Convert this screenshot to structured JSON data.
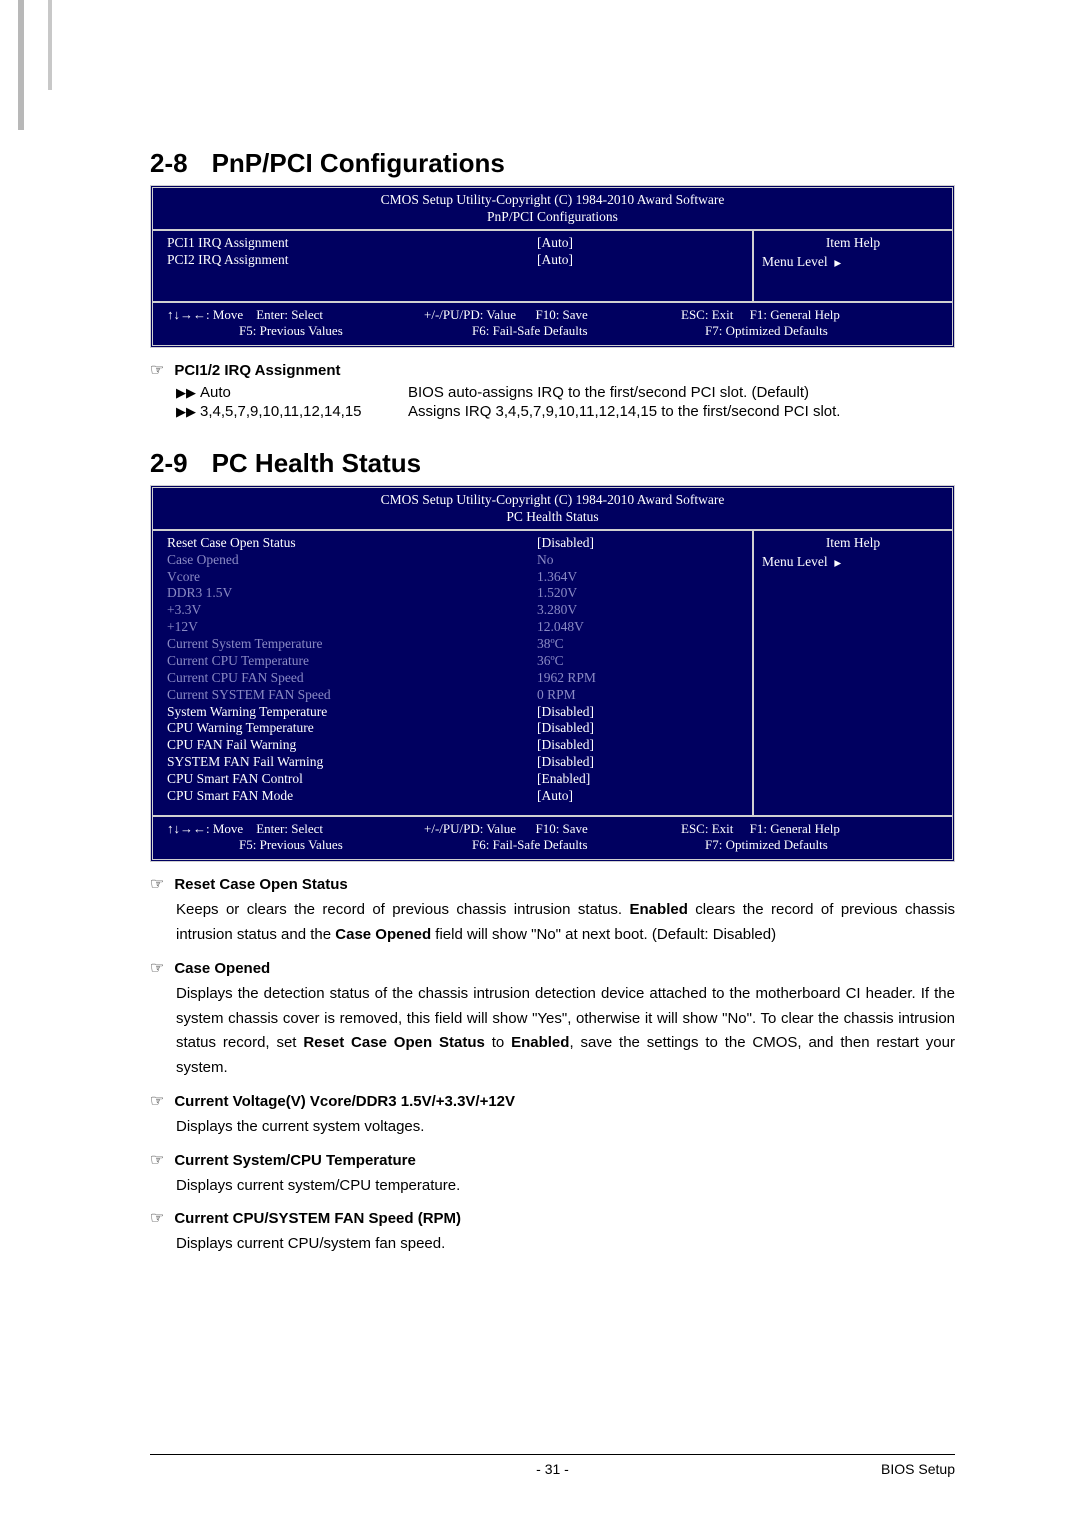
{
  "section1": {
    "number": "2-8",
    "title": "PnP/PCI Configurations",
    "bios": {
      "copyright": "CMOS Setup Utility-Copyright (C) 1984-2010 Award Software",
      "subtitle": "PnP/PCI Configurations",
      "rows": [
        {
          "label": "PCI1 IRQ Assignment",
          "value": "[Auto]",
          "dim": false
        },
        {
          "label": "PCI2 IRQ Assignment",
          "value": "[Auto]",
          "dim": false
        }
      ],
      "item_help": "Item Help",
      "menu_level": "Menu Level",
      "footer": {
        "move": "↑↓→←: Move",
        "enter": "Enter: Select",
        "pupd": "+/-/PU/PD: Value",
        "f10": "F10: Save",
        "esc": "ESC: Exit",
        "f1": "F1: General Help",
        "f5": "F5: Previous Values",
        "f6": "F6: Fail-Safe Defaults",
        "f7": "F7: Optimized Defaults"
      }
    },
    "option": {
      "heading": "PCI1/2 IRQ Assignment",
      "items": [
        {
          "k": "Auto",
          "v": "BIOS auto-assigns IRQ to the first/second PCI slot. (Default)"
        },
        {
          "k": "3,4,5,7,9,10,11,12,14,15",
          "v": "Assigns IRQ 3,4,5,7,9,10,11,12,14,15 to the first/second PCI slot."
        }
      ]
    }
  },
  "section2": {
    "number": "2-9",
    "title": "PC Health Status",
    "bios": {
      "copyright": "CMOS Setup Utility-Copyright (C) 1984-2010 Award Software",
      "subtitle": "PC Health Status",
      "rows": [
        {
          "label": "Reset Case Open Status",
          "value": "[Disabled]",
          "dim": false
        },
        {
          "label": "Case Opened",
          "value": "No",
          "dim": true
        },
        {
          "label": "Vcore",
          "value": "1.364V",
          "dim": true
        },
        {
          "label": "DDR3 1.5V",
          "value": "1.520V",
          "dim": true
        },
        {
          "label": "+3.3V",
          "value": "3.280V",
          "dim": true
        },
        {
          "label": "+12V",
          "value": "12.048V",
          "dim": true
        },
        {
          "label": "Current System Temperature",
          "value": "38ºC",
          "dim": true
        },
        {
          "label": "Current CPU Temperature",
          "value": "36ºC",
          "dim": true
        },
        {
          "label": "Current CPU FAN Speed",
          "value": "1962 RPM",
          "dim": true
        },
        {
          "label": "Current SYSTEM FAN Speed",
          "value": "0 RPM",
          "dim": true
        },
        {
          "label": "System Warning Temperature",
          "value": "[Disabled]",
          "dim": false
        },
        {
          "label": "CPU Warning Temperature",
          "value": "[Disabled]",
          "dim": false
        },
        {
          "label": "CPU FAN Fail Warning",
          "value": "[Disabled]",
          "dim": false
        },
        {
          "label": "SYSTEM FAN Fail Warning",
          "value": "[Disabled]",
          "dim": false
        },
        {
          "label": "CPU Smart FAN Control",
          "value": "[Enabled]",
          "dim": false
        },
        {
          "label": "CPU Smart FAN Mode",
          "value": "[Auto]",
          "dim": false
        }
      ],
      "item_help": "Item Help",
      "menu_level": "Menu Level",
      "footer": {
        "move": "↑↓→←: Move",
        "enter": "Enter: Select",
        "pupd": "+/-/PU/PD: Value",
        "f10": "F10: Save",
        "esc": "ESC: Exit",
        "f1": "F1: General Help",
        "f5": "F5: Previous Values",
        "f6": "F6: Fail-Safe Defaults",
        "f7": "F7: Optimized Defaults"
      }
    },
    "options": [
      {
        "heading": "Reset Case Open Status",
        "para_html": "Keeps or clears the record of previous chassis intrusion status. <b>Enabled</b> clears the record of previous chassis intrusion status and the <b>Case Opened</b> field will show \"No\" at next boot. (Default: Disabled)"
      },
      {
        "heading": "Case Opened",
        "para_html": "Displays the detection status of the chassis intrusion detection device attached to the motherboard CI header. If the system chassis cover is removed, this field will show \"Yes\", otherwise it will show \"No\". To clear the chassis intrusion status record, set <b>Reset Case Open Status</b> to <b>Enabled</b>, save the settings to the CMOS, and then restart your system."
      },
      {
        "heading": "Current Voltage(V) Vcore/DDR3 1.5V/+3.3V/+12V",
        "para_html": "Displays the current system voltages."
      },
      {
        "heading": "Current System/CPU Temperature",
        "para_html": "Displays current system/CPU temperature."
      },
      {
        "heading": "Current CPU/SYSTEM FAN Speed (RPM)",
        "para_html": "Displays current CPU/system fan speed."
      }
    ]
  },
  "footer": {
    "page": "- 31 -",
    "right": "BIOS Setup"
  },
  "colors": {
    "bios_bg": "#000060",
    "bios_text": "#ffffff",
    "bios_dim": "#8a8ac4",
    "border": "#d0d0d0"
  }
}
